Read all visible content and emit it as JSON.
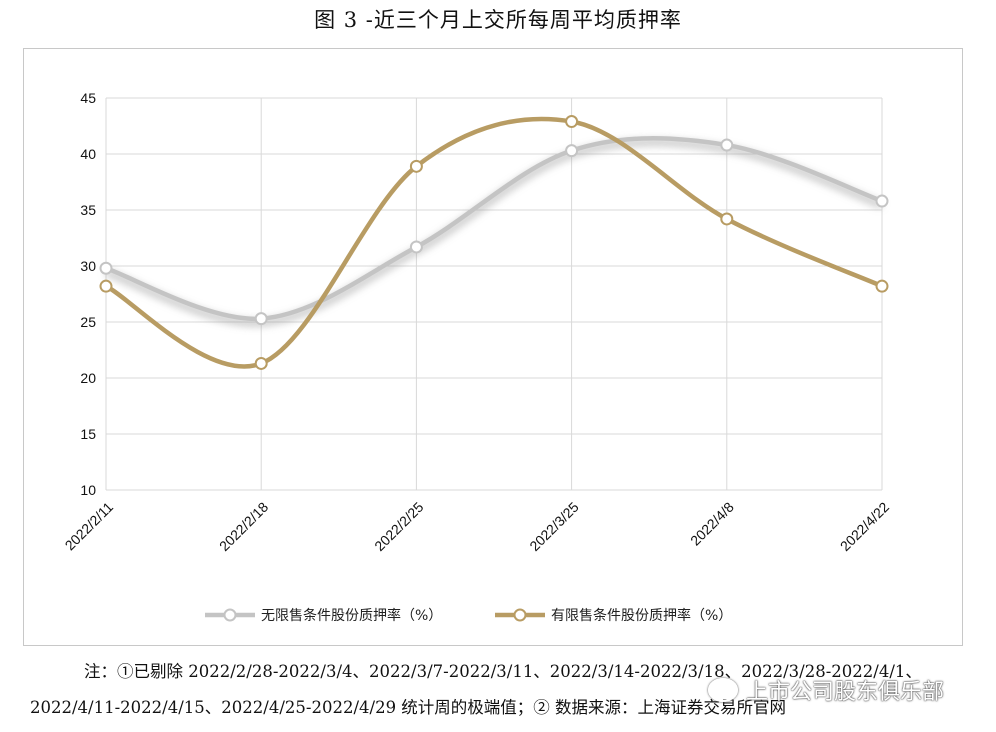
{
  "title": "图 3 -近三个月上交所每周平均质押率",
  "chart_data": {
    "type": "line",
    "categories": [
      "2022/2/11",
      "2022/2/18",
      "2022/2/25",
      "2022/3/25",
      "2022/4/8",
      "2022/4/22"
    ],
    "ylim": [
      10,
      45
    ],
    "yticks": [
      10,
      15,
      20,
      25,
      30,
      35,
      40,
      45
    ],
    "grid": true,
    "smooth": true,
    "legend_position": "bottom",
    "series": [
      {
        "name": "无限售条件股份质押率（%）",
        "color": "#c4c4c4",
        "values": [
          29.8,
          25.3,
          31.7,
          40.3,
          40.8,
          35.8
        ]
      },
      {
        "name": "有限售条件股份质押率（%）",
        "color": "#b89c63",
        "values": [
          28.2,
          21.3,
          38.9,
          42.9,
          34.2,
          28.2
        ]
      }
    ]
  },
  "notes": {
    "line1": "注：①已剔除 2022/2/28-2022/3/4、2022/3/7-2022/3/11、2022/3/14-2022/3/18、2022/3/28-2022/4/1、",
    "line2": "2022/4/11-2022/4/15、2022/4/25-2022/4/29 统计周的极端值；② 数据来源：上海证券交易所官网"
  },
  "watermark": "上市公司股东俱乐部"
}
